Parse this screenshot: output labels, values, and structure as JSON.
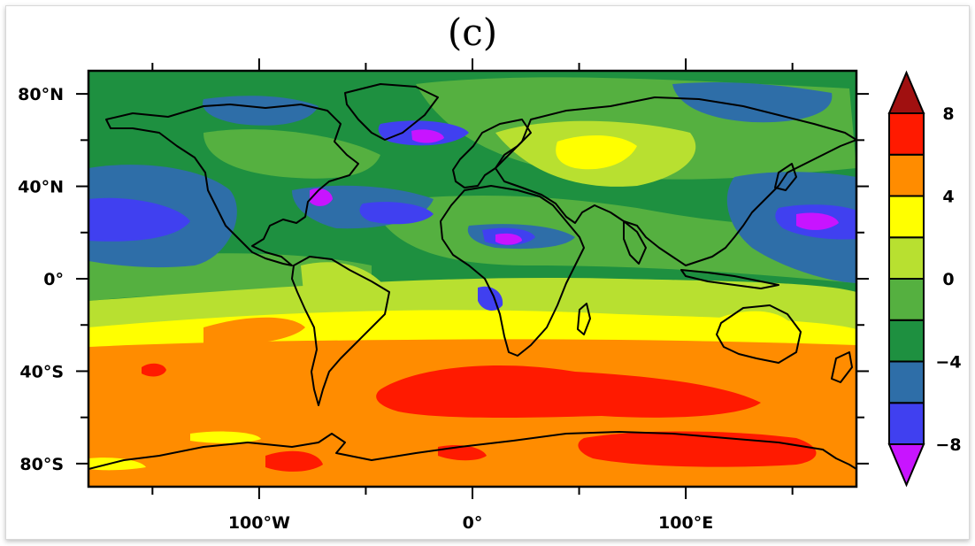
{
  "title": "(c)",
  "map": {
    "projection": "equirectangular",
    "lon_range": [
      -180,
      180
    ],
    "lat_range": [
      -90,
      90
    ],
    "y_tick_labels": [
      "80°N",
      "40°N",
      "0°",
      "40°S",
      "80°S"
    ],
    "y_tick_values": [
      80,
      40,
      0,
      -40,
      -80
    ],
    "x_tick_labels": [
      "100°W",
      "0°",
      "100°E"
    ],
    "x_tick_values": [
      -100,
      0,
      100
    ]
  },
  "colorbar": {
    "labels": [
      "8",
      "4",
      "0",
      "−4",
      "−8"
    ],
    "label_values": [
      8,
      4,
      0,
      -4,
      -8
    ],
    "levels": [
      -8,
      -6,
      -4,
      -2,
      0,
      2,
      4,
      6,
      8
    ],
    "colors": [
      "#c814ff",
      "#4040f0",
      "#2e6ea8",
      "#1e9040",
      "#55b040",
      "#b8e030",
      "#ffff00",
      "#ff8c00",
      "#ff1a00",
      "#a01010"
    ],
    "extend": "both"
  }
}
